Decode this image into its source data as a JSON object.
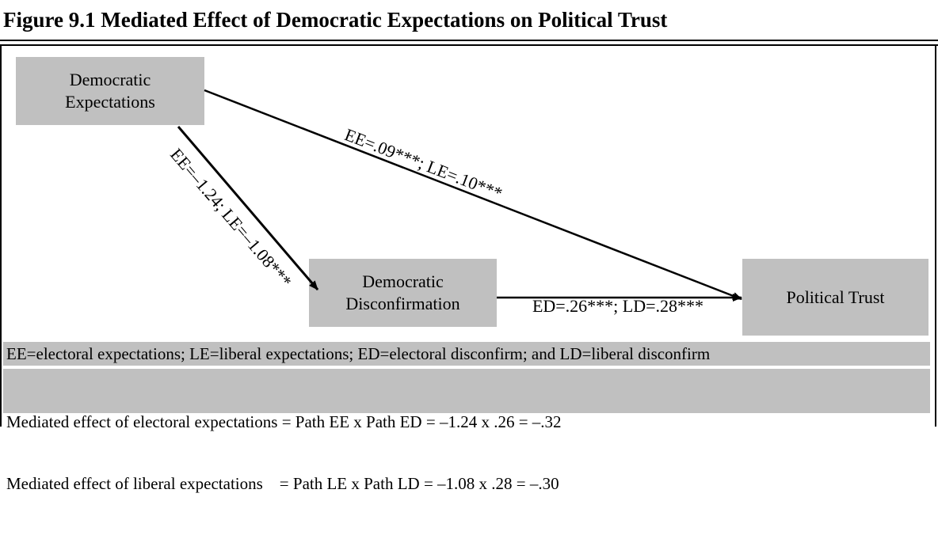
{
  "title": "Figure 9.1 Mediated Effect of Democratic Expectations on Political Trust",
  "nodes": [
    {
      "lines": [
        "Democratic",
        "Expectations"
      ]
    },
    {
      "lines": [
        "Democratic",
        "Disconfirmation"
      ]
    },
    {
      "lines": [
        "Political Trust"
      ]
    }
  ],
  "edges": [
    {
      "label": "EE=.09***; LE=.10***"
    },
    {
      "label": "EE=–1.24; LE=–1.08***"
    },
    {
      "label": "ED=.26***; LD=.28***"
    }
  ],
  "notes": {
    "legend": "EE=electoral expectations; LE=liberal expectations; ED=electoral disconfirm; and LD=liberal disconfirm",
    "lines": [
      "Mediated effect of electoral expectations = Path EE x Path ED = –1.24 x .26 = –.32",
      "Mediated effect of liberal expectations    = Path LE x Path LD = –1.08 x .28 = –.30"
    ]
  }
}
